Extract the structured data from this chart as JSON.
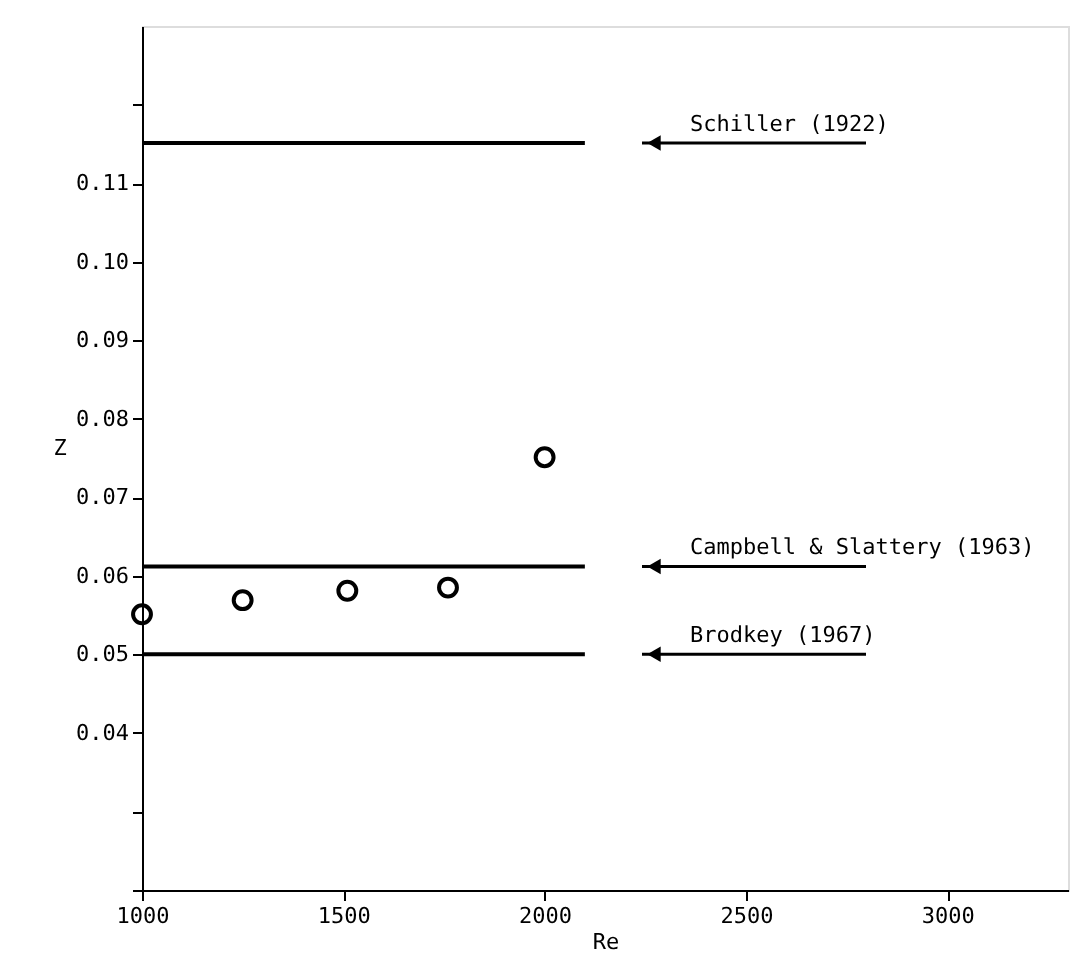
{
  "chart_data": {
    "type": "scatter",
    "xlabel": "Re",
    "ylabel": "Z",
    "xlim": [
      1000,
      3300
    ],
    "ylim": [
      0.02,
      0.13
    ],
    "xticks": [
      1000,
      1500,
      2000,
      2500,
      3000
    ],
    "yticks": [
      {
        "value": 0.02,
        "label": null
      },
      {
        "value": 0.03,
        "label": null
      },
      0.04,
      0.05,
      0.06,
      0.07,
      0.08,
      0.09,
      {
        "value": 0.1,
        "label": "0.10"
      },
      0.11,
      {
        "value": 0.12,
        "label": null
      }
    ],
    "grid": false,
    "marker": "circle",
    "series": [
      {
        "color": "#000000",
        "x": [
          1000,
          1250,
          1510,
          1760,
          2000
        ],
        "values": [
          0.0551,
          0.0569,
          0.0581,
          0.0585,
          0.0751
        ]
      },
      {
        "type": "line",
        "name": "Schiller (1922)",
        "color": "#000000",
        "marker": "none",
        "line_style": "solid",
        "x": [
          1000,
          2100
        ],
        "values": [
          0.1151,
          0.1151
        ]
      },
      {
        "type": "line",
        "name": "Campbell & Slattery (1963)",
        "color": "#000000",
        "marker": "none",
        "line_style": "solid",
        "x": [
          1000,
          2100
        ],
        "values": [
          0.0612,
          0.0612
        ]
      },
      {
        "type": "line",
        "name": "Brodkey (1967)",
        "color": "#000000",
        "marker": "none",
        "line_style": "solid",
        "x": [
          1000,
          2100
        ],
        "values": [
          0.05,
          0.05
        ]
      }
    ]
  }
}
